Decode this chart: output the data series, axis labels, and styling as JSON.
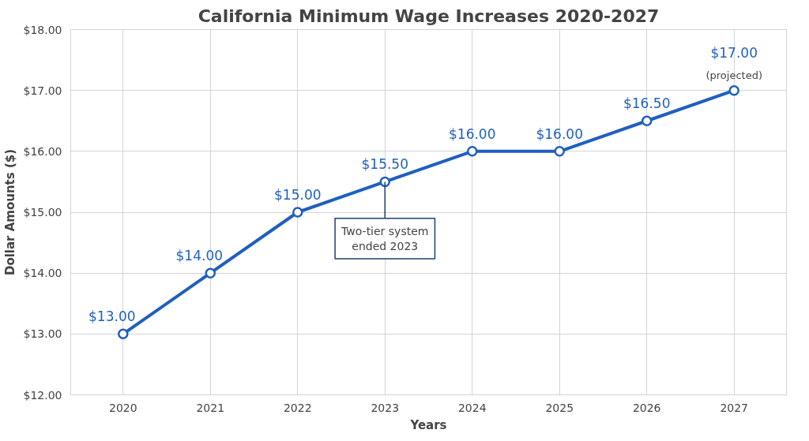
{
  "chart_data": {
    "type": "line",
    "title": "California Minimum Wage Increases 2020-2027",
    "xlabel": "Years",
    "ylabel": "Dollar Amounts ($)",
    "categories": [
      "2020",
      "2021",
      "2022",
      "2023",
      "2024",
      "2025",
      "2026",
      "2027"
    ],
    "series": [
      {
        "color": "#1f5fbf",
        "values": [
          13,
          14,
          15,
          15.5,
          16,
          16,
          16.5,
          17
        ],
        "value_labels": [
          "$13.00",
          "$14.00",
          "$15.00",
          "$15.50",
          "$16.00",
          "$16.00",
          "$16.50",
          "$17.00"
        ]
      }
    ],
    "ylim": [
      12,
      18
    ],
    "yticks": [
      {
        "value": 12,
        "label": "$12.00"
      },
      {
        "value": 13,
        "label": "$13.00"
      },
      {
        "value": 14,
        "label": "$14.00"
      },
      {
        "value": 15,
        "label": "$15.00"
      },
      {
        "value": 16,
        "label": "$16.00"
      },
      {
        "value": 17,
        "label": "$17.00"
      },
      {
        "value": 18,
        "label": "$18.00"
      }
    ],
    "annotations": [
      {
        "text": "(projected)",
        "x": "2027",
        "y": 17
      },
      {
        "text": "Two-tier system\nended 2023",
        "x": "2023",
        "y": 15.5
      }
    ],
    "grid": true,
    "marker": "circle",
    "line_style": "solid"
  }
}
